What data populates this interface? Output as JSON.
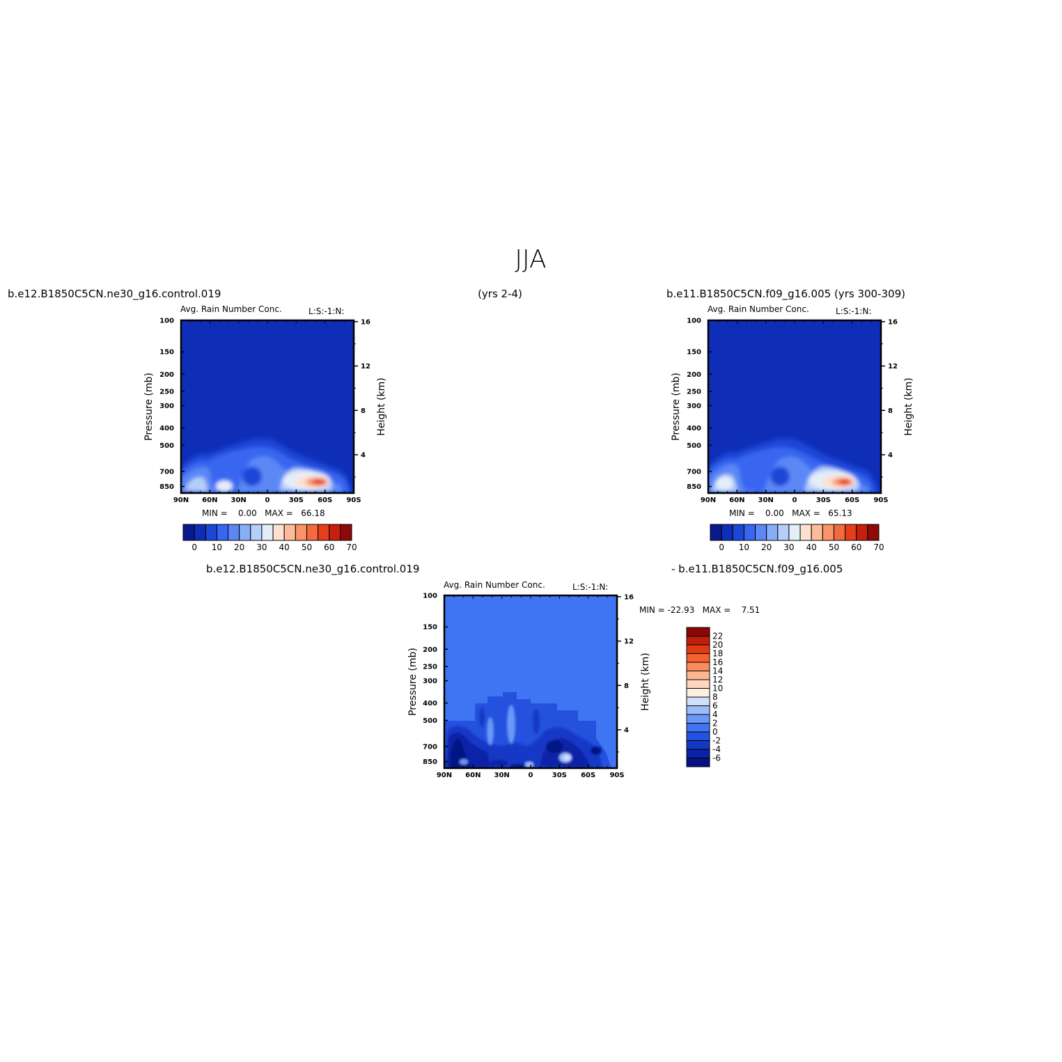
{
  "page_title": "JJA",
  "top_left_case": "b.e12.B1850C5CN.ne30_g16.control.019",
  "top_center_years": "(yrs 2-4)",
  "top_right_case": "b.e11.B1850C5CN.f09_g16.005 (yrs 300-309)",
  "bottom_left_case": "b.e12.B1850C5CN.ne30_g16.control.019",
  "bottom_right_case": "- b.e11.B1850C5CN.f09_g16.005",
  "colors": {
    "abs_levels": [
      "#0a1a8c",
      "#0f2eb8",
      "#1d47d8",
      "#3866f0",
      "#5b88f5",
      "#88aef8",
      "#b6cff9",
      "#e4eef9",
      "#fde0cf",
      "#fcbc9a",
      "#f9936a",
      "#f46a3f",
      "#e63d1c",
      "#c51f0d",
      "#8e0a08"
    ],
    "diff_levels": [
      "#061284",
      "#0a22a6",
      "#1438c6",
      "#2452de",
      "#3f75f2",
      "#6b98f7",
      "#9bbcf9",
      "#cde0fa",
      "#fdf0e3",
      "#fdd7bf",
      "#fcb690",
      "#fa8c5e",
      "#f4612f",
      "#e23a13",
      "#bf1e0a",
      "#8c0606"
    ]
  },
  "chart_data": [
    {
      "type": "heatmap",
      "title": "Avg. Rain Number Conc.",
      "subtitle": "L:S:-1:N:",
      "ylabel": "Pressure (mb)",
      "ylabel_right": "Height (km)",
      "x_ticks": [
        "90N",
        "60N",
        "30N",
        "0",
        "30S",
        "60S",
        "90S"
      ],
      "y_ticks": [
        "100",
        "150",
        "200",
        "250",
        "300",
        "400",
        "500",
        "700",
        "850"
      ],
      "y_ticks_right": [
        "16",
        "12",
        "8",
        "4"
      ],
      "stats": "MIN =    0.00   MAX =   66.18",
      "colorbar_labels": [
        "0",
        "10",
        "20",
        "30",
        "40",
        "50",
        "60",
        "70"
      ],
      "min": 0.0,
      "max": 66.18
    },
    {
      "type": "heatmap",
      "title": "Avg. Rain Number Conc.",
      "subtitle": "L:S:-1:N:",
      "ylabel": "Pressure (mb)",
      "ylabel_right": "Height (km)",
      "x_ticks": [
        "90N",
        "60N",
        "30N",
        "0",
        "30S",
        "60S",
        "90S"
      ],
      "y_ticks": [
        "100",
        "150",
        "200",
        "250",
        "300",
        "400",
        "500",
        "700",
        "850"
      ],
      "y_ticks_right": [
        "16",
        "12",
        "8",
        "4"
      ],
      "stats": "MIN =    0.00   MAX =   65.13",
      "colorbar_labels": [
        "0",
        "10",
        "20",
        "30",
        "40",
        "50",
        "60",
        "70"
      ],
      "min": 0.0,
      "max": 65.13
    },
    {
      "type": "heatmap",
      "title": "Avg. Rain Number Conc.",
      "subtitle": "L:S:-1:N:",
      "ylabel": "Pressure (mb)",
      "ylabel_right": "Height (km)",
      "x_ticks": [
        "90N",
        "60N",
        "30N",
        "0",
        "30S",
        "60S",
        "90S"
      ],
      "y_ticks": [
        "100",
        "150",
        "200",
        "250",
        "300",
        "400",
        "500",
        "700",
        "850"
      ],
      "y_ticks_right": [
        "16",
        "12",
        "8",
        "4"
      ],
      "stats": "MIN = -22.93   MAX =    7.51",
      "colorbar_labels": [
        "22",
        "20",
        "18",
        "16",
        "14",
        "12",
        "10",
        "8",
        "6",
        "4",
        "2",
        "0",
        "-2",
        "-4",
        "-6"
      ],
      "min": -22.93,
      "max": 7.51
    }
  ]
}
